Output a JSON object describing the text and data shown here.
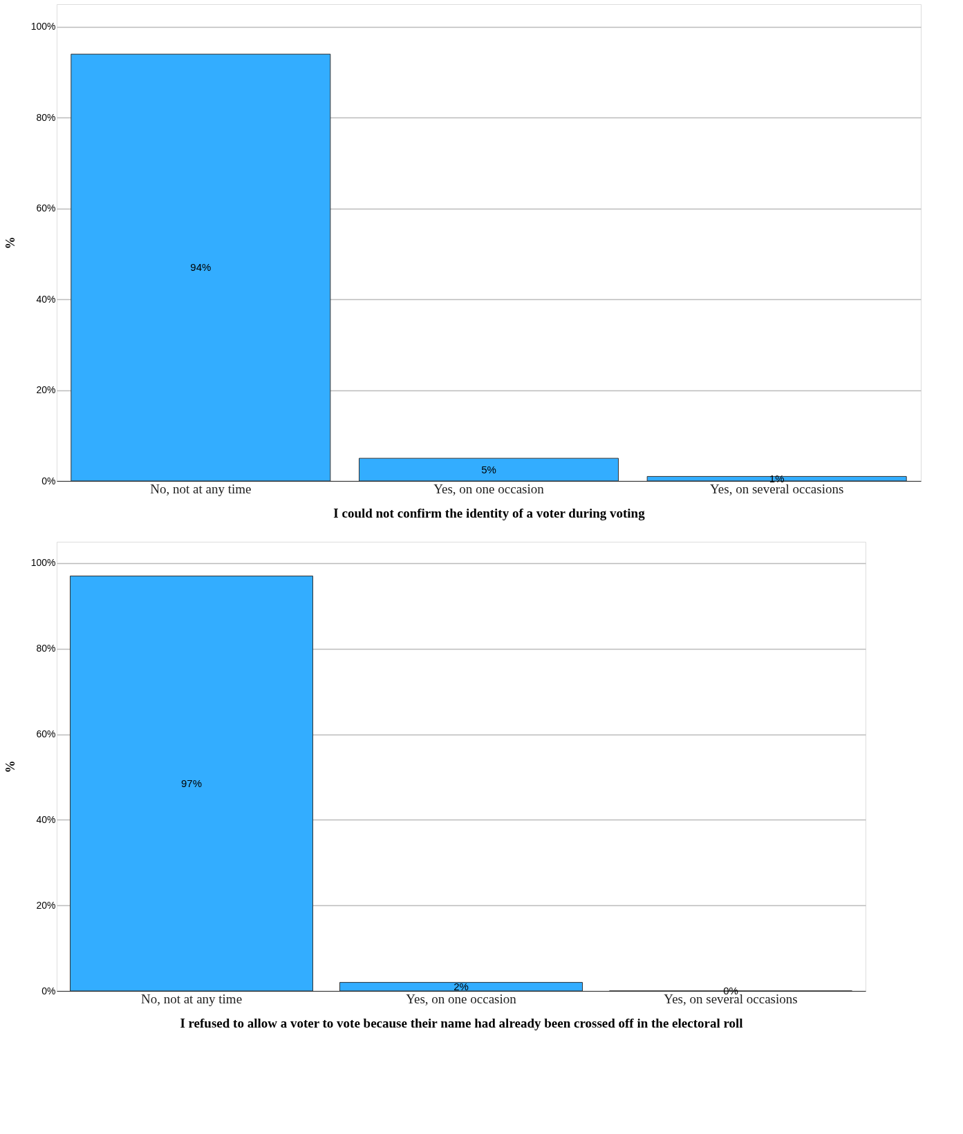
{
  "chart_data": [
    {
      "type": "bar",
      "xlabel": "I could not confirm the identity of a voter during voting",
      "ylabel": "%",
      "categories": [
        "No, not at any time",
        "Yes, on one occasion",
        "Yes, on several occasions"
      ],
      "values": [
        94,
        5,
        1
      ],
      "value_labels": [
        "94%",
        "5%",
        "1%"
      ],
      "color": "#33adff",
      "ylim": [
        0,
        105
      ],
      "yticks": [
        {
          "value": 0,
          "label": "0%"
        },
        {
          "value": 20,
          "label": "20%"
        },
        {
          "value": 40,
          "label": "40%"
        },
        {
          "value": 60,
          "label": "60%"
        },
        {
          "value": 80,
          "label": "80%"
        },
        {
          "value": 100,
          "label": "100%"
        }
      ],
      "grid": "y"
    },
    {
      "type": "bar",
      "xlabel": "I refused to allow a voter to vote because their name had already been crossed off in the electoral roll",
      "ylabel": "%",
      "categories": [
        "No, not at any time",
        "Yes, on one occasion",
        "Yes, on several occasions"
      ],
      "values": [
        97,
        2,
        0
      ],
      "value_labels": [
        "97%",
        "2%",
        "0%"
      ],
      "color": "#33adff",
      "ylim": [
        0,
        105
      ],
      "yticks": [
        {
          "value": 0,
          "label": "0%"
        },
        {
          "value": 20,
          "label": "20%"
        },
        {
          "value": 40,
          "label": "40%"
        },
        {
          "value": 60,
          "label": "60%"
        },
        {
          "value": 80,
          "label": "80%"
        },
        {
          "value": 100,
          "label": "100%"
        }
      ],
      "grid": "y"
    }
  ]
}
